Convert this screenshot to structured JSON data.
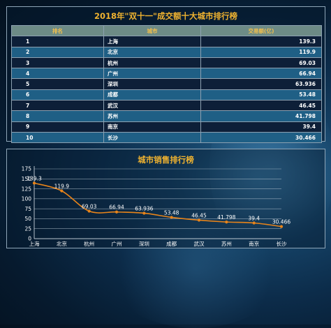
{
  "table": {
    "title": "2018年\"双十一\"成交额十大城市排行榜",
    "headers": [
      "排名",
      "城市",
      "交易额(亿)"
    ],
    "rows": [
      [
        "1",
        "上海",
        "139.3"
      ],
      [
        "2",
        "北京",
        "119.9"
      ],
      [
        "3",
        "杭州",
        "69.03"
      ],
      [
        "4",
        "广州",
        "66.94"
      ],
      [
        "5",
        "深圳",
        "63.936"
      ],
      [
        "6",
        "成都",
        "53.48"
      ],
      [
        "7",
        "武汉",
        "46.45"
      ],
      [
        "8",
        "苏州",
        "41.798"
      ],
      [
        "9",
        "南京",
        "39.4"
      ],
      [
        "10",
        "长沙",
        "30.466"
      ]
    ]
  },
  "chart_data": {
    "type": "line",
    "title": "城市销售排行榜",
    "categories": [
      "上海",
      "北京",
      "杭州",
      "广州",
      "深圳",
      "成都",
      "武汉",
      "苏州",
      "南京",
      "长沙"
    ],
    "values": [
      139.3,
      119.9,
      69.03,
      66.94,
      63.936,
      53.48,
      46.45,
      41.798,
      39.4,
      30.466
    ],
    "value_labels": [
      "139.3",
      "119.9",
      "69.03",
      "66.94",
      "63.936",
      "53.48",
      "46.45",
      "41.798",
      "39.4",
      "30.466"
    ],
    "yticks": [
      0,
      25,
      50,
      75,
      100,
      125,
      150,
      175
    ],
    "ylim": [
      0,
      175
    ],
    "grid": true,
    "line_color": "#e8841a",
    "text_color": "#ffffff"
  },
  "colors": {
    "title": "#f0b330",
    "header_bg": "#6d8b86",
    "row_dark": "#0d1f38",
    "row_light": "#1f5f85"
  }
}
